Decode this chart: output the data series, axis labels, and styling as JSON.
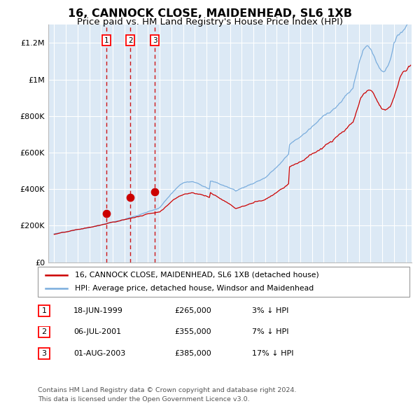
{
  "title": "16, CANNOCK CLOSE, MAIDENHEAD, SL6 1XB",
  "subtitle": "Price paid vs. HM Land Registry's House Price Index (HPI)",
  "title_fontsize": 11.5,
  "subtitle_fontsize": 9.5,
  "plot_bg_color": "#dce9f5",
  "red_line_color": "#cc0000",
  "blue_line_color": "#7aaddd",
  "grid_color": "#ffffff",
  "vline_color": "#cc0000",
  "marker_color": "#cc0000",
  "legend_entries": [
    "16, CANNOCK CLOSE, MAIDENHEAD, SL6 1XB (detached house)",
    "HPI: Average price, detached house, Windsor and Maidenhead"
  ],
  "table_rows": [
    [
      "1",
      "18-JUN-1999",
      "£265,000",
      "3% ↓ HPI"
    ],
    [
      "2",
      "06-JUL-2001",
      "£355,000",
      "7% ↓ HPI"
    ],
    [
      "3",
      "01-AUG-2003",
      "£385,000",
      "17% ↓ HPI"
    ]
  ],
  "footer1": "Contains HM Land Registry data © Crown copyright and database right 2024.",
  "footer2": "This data is licensed under the Open Government Licence v3.0.",
  "ylim": [
    0,
    1300000
  ],
  "xlim_start": 1994.5,
  "xlim_end": 2025.5,
  "purchase_dates": [
    1999.46,
    2001.51,
    2003.58
  ],
  "purchase_prices": [
    265000,
    355000,
    385000
  ],
  "purchase_labels": [
    "1",
    "2",
    "3"
  ]
}
